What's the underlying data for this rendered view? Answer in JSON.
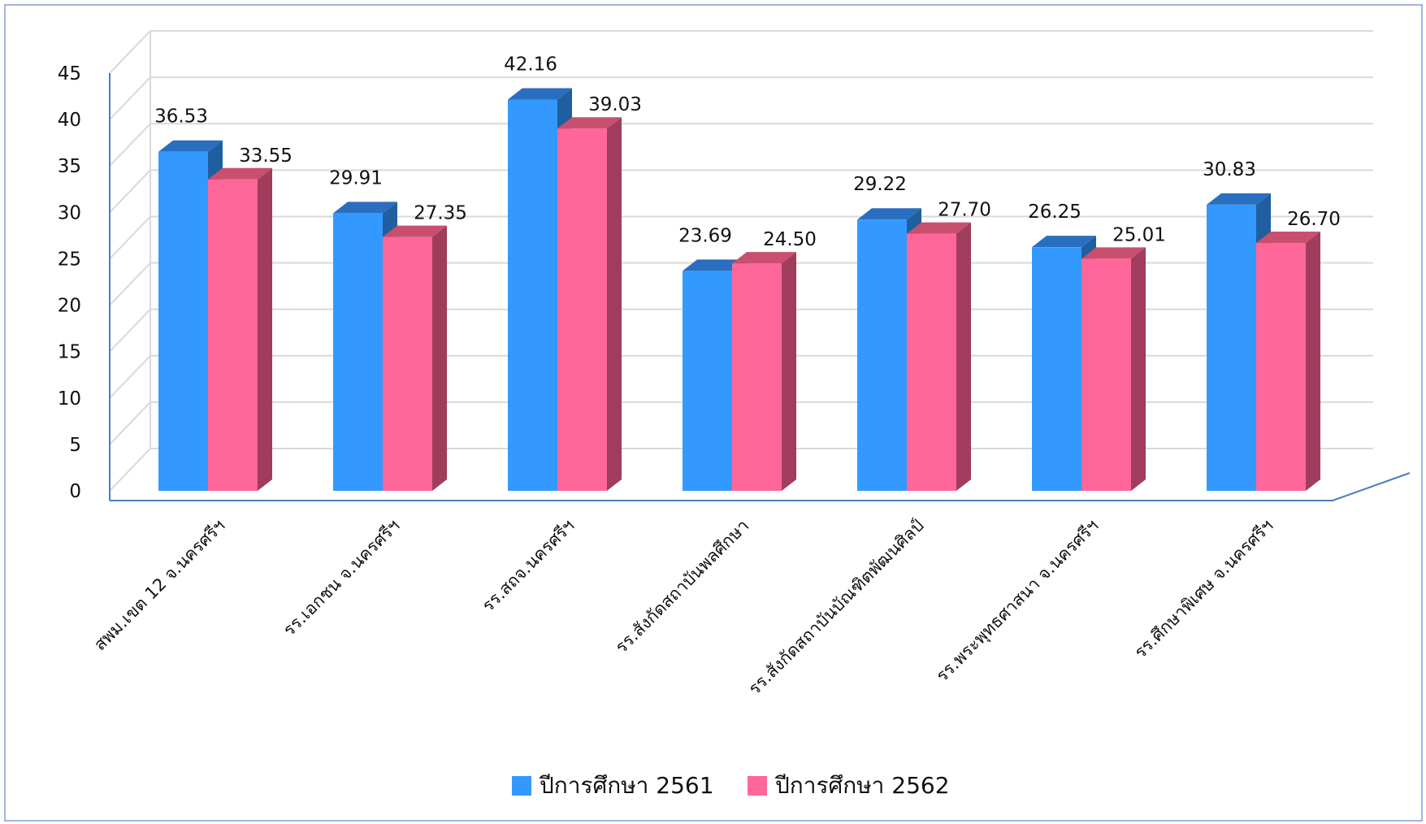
{
  "chart_data": {
    "type": "bar",
    "categories": [
      "สพม.เขต 12 จ.นครศรีฯ",
      "รร.เอกชน จ.นครศรีฯ",
      "รร.สถจ.นครศรีฯ",
      "รร.สังกัดสถาบันพลศึกษา",
      "รร.สังกัดสถาบันบัณฑิตพัฒนศิลป์",
      "รร.พระพุทธศาสนา จ.นครศรีฯ",
      "รร.ศึกษาพิเศษ จ.นครศรีฯ"
    ],
    "series": [
      {
        "name": "ปีการศึกษา 2561",
        "values": [
          36.53,
          29.91,
          42.16,
          23.69,
          29.22,
          26.25,
          30.83
        ],
        "labels": [
          "36.53",
          "29.91",
          "42.16",
          "23.69",
          "29.22",
          "26.25",
          "30.83"
        ],
        "color": "#3399ff",
        "top_color": "#2a6fbf",
        "side_color": "#205f9f"
      },
      {
        "name": "ปีการศึกษา 2562",
        "values": [
          33.55,
          27.35,
          39.03,
          24.5,
          27.7,
          25.01,
          26.7
        ],
        "labels": [
          "33.55",
          "27.35",
          "39.03",
          "24.50",
          "27.70",
          "25.01",
          "26.70"
        ],
        "color": "#ff6699",
        "top_color": "#c8506e",
        "side_color": "#a03c5c"
      }
    ],
    "y_ticks": [
      "0",
      "5",
      "10",
      "15",
      "20",
      "25",
      "30",
      "35",
      "40",
      "45"
    ],
    "ylim": [
      0,
      45
    ],
    "grid": true,
    "legend_position": "bottom",
    "frame_color": "#4a7ebb",
    "grid_color": "#d9d9d9"
  }
}
